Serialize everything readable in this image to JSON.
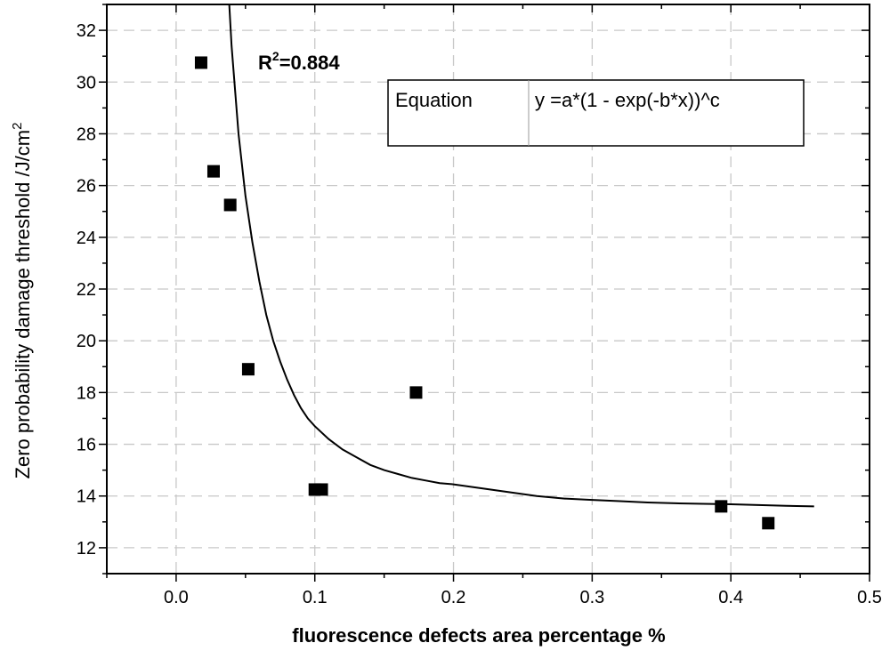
{
  "chart_data": {
    "type": "scatter",
    "title": "",
    "xlabel": "fluorescence defects area percentage %",
    "ylabel_main": "Zero probability damage threshold /J/cm",
    "ylabel_sup": "2",
    "xlim": [
      -0.05,
      0.5
    ],
    "ylim": [
      11,
      33
    ],
    "x_ticks": [
      0.0,
      0.1,
      0.2,
      0.3,
      0.4,
      0.5
    ],
    "x_tick_labels": [
      "0.0",
      "0.1",
      "0.2",
      "0.3",
      "0.4",
      "0.5"
    ],
    "y_ticks": [
      12,
      14,
      16,
      18,
      20,
      22,
      24,
      26,
      28,
      30,
      32
    ],
    "y_tick_labels": [
      "12",
      "14",
      "16",
      "18",
      "20",
      "22",
      "24",
      "26",
      "28",
      "30",
      "32"
    ],
    "grid": true,
    "points": [
      {
        "x": 0.018,
        "y": 30.75
      },
      {
        "x": 0.027,
        "y": 26.55
      },
      {
        "x": 0.039,
        "y": 25.25
      },
      {
        "x": 0.052,
        "y": 18.9
      },
      {
        "x": 0.1,
        "y": 14.25
      },
      {
        "x": 0.105,
        "y": 14.25
      },
      {
        "x": 0.173,
        "y": 18.0
      },
      {
        "x": 0.393,
        "y": 13.6
      },
      {
        "x": 0.427,
        "y": 12.95
      }
    ],
    "fit_curve": {
      "x": [
        0.0383,
        0.04,
        0.045,
        0.05,
        0.055,
        0.06,
        0.065,
        0.07,
        0.075,
        0.08,
        0.085,
        0.09,
        0.095,
        0.1,
        0.11,
        0.12,
        0.13,
        0.14,
        0.15,
        0.16,
        0.17,
        0.18,
        0.19,
        0.2,
        0.22,
        0.24,
        0.26,
        0.28,
        0.3,
        0.32,
        0.34,
        0.36,
        0.38,
        0.4,
        0.42,
        0.44,
        0.46
      ],
      "y": [
        33.0,
        31.4,
        28.0,
        25.6,
        23.8,
        22.3,
        21.0,
        20.0,
        19.2,
        18.5,
        17.9,
        17.4,
        17.0,
        16.7,
        16.2,
        15.8,
        15.5,
        15.2,
        15.0,
        14.85,
        14.7,
        14.6,
        14.5,
        14.45,
        14.3,
        14.15,
        14.0,
        13.9,
        13.85,
        13.8,
        13.75,
        13.72,
        13.7,
        13.68,
        13.65,
        13.62,
        13.6
      ]
    },
    "r2_label": "R",
    "r2_sup": "2",
    "r2_value": "=0.884",
    "legend_table": {
      "col1": "Equation",
      "col2": "y =a*(1 - exp(-b*x))^c"
    }
  }
}
